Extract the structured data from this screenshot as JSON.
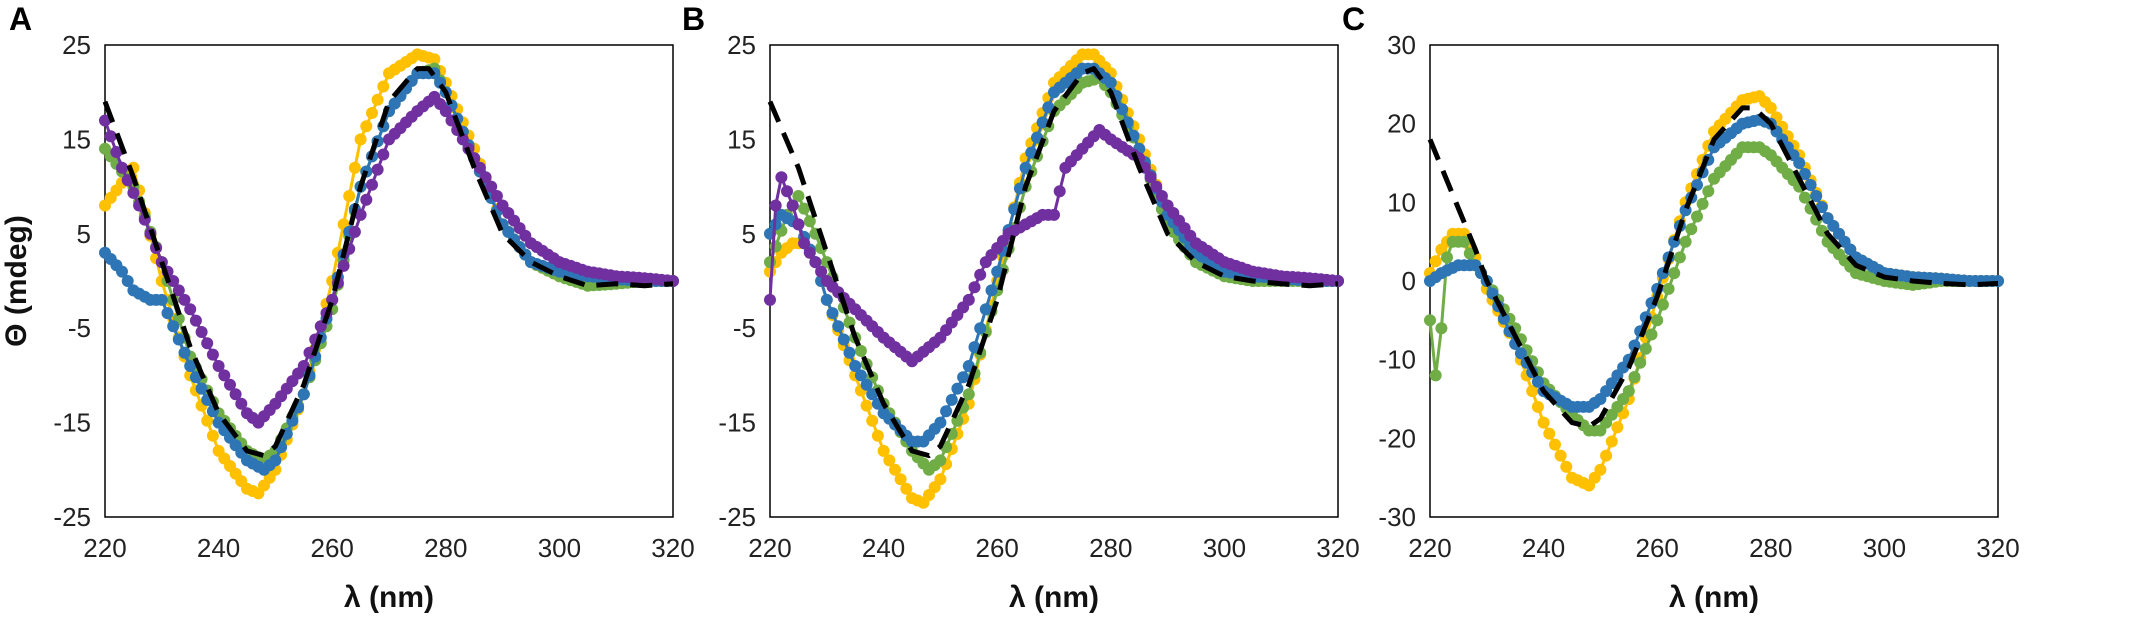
{
  "chart_data": [
    {
      "type": "line",
      "panel_label": "A",
      "xlabel": "λ (nm)",
      "ylabel": "Θ (mdeg)",
      "xlim": [
        220,
        320
      ],
      "ylim": [
        -25,
        25
      ],
      "xticks": [
        220,
        240,
        260,
        280,
        300,
        320
      ],
      "yticks": [
        25,
        15,
        5,
        -5,
        -15,
        -25
      ],
      "series": [
        {
          "name": "yellow",
          "color": "#FFC000",
          "style": "markers",
          "x": [
            220,
            225,
            230,
            235,
            240,
            245,
            247,
            250,
            255,
            260,
            265,
            270,
            275,
            278,
            280,
            285,
            290,
            295,
            300,
            305,
            310,
            315,
            320
          ],
          "y": [
            8,
            12,
            0,
            -10,
            -18,
            -22,
            -22.5,
            -20,
            -12,
            0,
            15,
            22,
            24,
            23.5,
            21,
            14,
            6,
            2,
            0.5,
            0,
            0,
            0,
            0
          ]
        },
        {
          "name": "green",
          "color": "#70AD47",
          "style": "markers",
          "x": [
            220,
            225,
            230,
            235,
            240,
            245,
            248,
            250,
            255,
            260,
            265,
            270,
            275,
            278,
            280,
            285,
            290,
            295,
            300,
            305,
            310,
            315,
            320
          ],
          "y": [
            14,
            10,
            2,
            -8,
            -14,
            -18,
            -19,
            -18,
            -12,
            -3,
            10,
            18,
            22,
            22.5,
            20,
            13,
            6,
            2,
            0.5,
            -0.5,
            -0.3,
            0,
            0
          ]
        },
        {
          "name": "blue",
          "color": "#2E75B6",
          "style": "markers",
          "x": [
            220,
            223,
            225,
            228,
            230,
            235,
            240,
            245,
            248,
            250,
            255,
            260,
            265,
            270,
            275,
            278,
            280,
            285,
            290,
            295,
            300,
            305,
            310,
            315,
            320
          ],
          "y": [
            3,
            1,
            -1,
            -2,
            -2,
            -9,
            -15,
            -19,
            -20,
            -19,
            -12,
            -2,
            10,
            18,
            22,
            22,
            20,
            13,
            6,
            2,
            1,
            0.5,
            0.2,
            0,
            0
          ]
        },
        {
          "name": "purple",
          "color": "#7030A0",
          "style": "markers",
          "x": [
            220,
            223,
            226,
            230,
            235,
            240,
            245,
            247,
            250,
            255,
            260,
            265,
            270,
            275,
            278,
            280,
            285,
            290,
            295,
            300,
            305,
            310,
            315,
            320
          ],
          "y": [
            17,
            12,
            8,
            2,
            -3,
            -9,
            -14,
            -15,
            -13,
            -9,
            -2,
            7,
            15,
            18,
            19.5,
            18,
            13,
            8,
            4,
            2,
            1,
            0.5,
            0.3,
            0
          ]
        },
        {
          "name": "reference",
          "color": "#000000",
          "style": "dashed",
          "x": [
            220,
            225,
            230,
            235,
            240,
            245,
            248,
            250,
            255,
            260,
            265,
            270,
            275,
            277,
            280,
            285,
            290,
            295,
            300,
            305,
            310,
            315,
            320
          ],
          "y": [
            19,
            11,
            2,
            -7,
            -14,
            -18,
            -18.5,
            -17.5,
            -11,
            -2,
            10,
            19,
            22.5,
            22.5,
            20,
            12,
            5,
            2,
            0.5,
            -0.5,
            -0.3,
            -0.5,
            -0.3
          ]
        }
      ]
    },
    {
      "type": "line",
      "panel_label": "B",
      "xlabel": "λ (nm)",
      "ylabel": "",
      "xlim": [
        220,
        320
      ],
      "ylim": [
        -25,
        25
      ],
      "xticks": [
        220,
        240,
        260,
        280,
        300,
        320
      ],
      "yticks": [
        25,
        15,
        5,
        -5,
        -15,
        -25
      ],
      "series": [
        {
          "name": "yellow",
          "color": "#FFC000",
          "style": "markers",
          "x": [
            220,
            222,
            224,
            226,
            228,
            230,
            235,
            240,
            245,
            247,
            250,
            255,
            260,
            265,
            270,
            275,
            277,
            280,
            285,
            290,
            295,
            300,
            305,
            310,
            315,
            320
          ],
          "y": [
            1,
            3,
            4,
            4,
            2,
            -2,
            -10,
            -18,
            -23,
            -23.5,
            -21,
            -13,
            0,
            13,
            21,
            24,
            24,
            22,
            15,
            7,
            3,
            1,
            0.5,
            0.3,
            0,
            0
          ]
        },
        {
          "name": "green",
          "color": "#70AD47",
          "style": "markers",
          "x": [
            220,
            223,
            225,
            228,
            230,
            235,
            240,
            245,
            248,
            250,
            255,
            260,
            265,
            270,
            275,
            278,
            280,
            285,
            290,
            295,
            300,
            305,
            310,
            315,
            320
          ],
          "y": [
            2,
            7,
            9,
            5,
            2,
            -6,
            -13,
            -18,
            -20,
            -19,
            -12,
            -1,
            10,
            18,
            21,
            21.5,
            20,
            14,
            6,
            2,
            0.5,
            0,
            0,
            0,
            0
          ]
        },
        {
          "name": "blue",
          "color": "#2E75B6",
          "style": "markers",
          "x": [
            220,
            222,
            225,
            228,
            230,
            235,
            240,
            245,
            247,
            250,
            255,
            260,
            265,
            270,
            275,
            277,
            280,
            285,
            290,
            295,
            300,
            305,
            310,
            315,
            320
          ],
          "y": [
            5,
            7,
            6,
            2,
            -2,
            -9,
            -14,
            -17,
            -17,
            -15,
            -9,
            1,
            12,
            20,
            22.5,
            22.5,
            21,
            14,
            7,
            3,
            1,
            0.5,
            0.3,
            0,
            0
          ]
        },
        {
          "name": "purple",
          "color": "#7030A0",
          "style": "markers",
          "x": [
            220,
            221,
            222,
            224,
            226,
            228,
            230,
            235,
            240,
            245,
            248,
            250,
            255,
            258,
            262,
            265,
            268,
            270,
            272,
            275,
            278,
            280,
            285,
            290,
            295,
            300,
            305,
            310,
            315,
            320
          ],
          "y": [
            -2,
            8,
            11,
            8,
            4,
            2,
            0,
            -3,
            -6,
            -8.5,
            -7,
            -6,
            -2,
            2,
            5,
            6,
            7,
            7,
            12,
            14,
            16,
            15,
            13,
            8,
            4,
            2,
            1,
            0.5,
            0.3,
            0
          ]
        },
        {
          "name": "reference",
          "color": "#000000",
          "style": "dashed",
          "x": [
            220,
            225,
            230,
            235,
            240,
            245,
            248,
            250,
            255,
            260,
            265,
            270,
            275,
            277,
            280,
            285,
            290,
            295,
            300,
            305,
            310,
            315,
            320
          ],
          "y": [
            19,
            12,
            3,
            -6,
            -13,
            -18,
            -18.5,
            -17.5,
            -11,
            -2,
            10,
            18,
            22,
            22.5,
            20,
            12,
            5,
            2,
            0.5,
            0,
            -0.3,
            -0.5,
            -0.3
          ]
        }
      ]
    },
    {
      "type": "line",
      "panel_label": "C",
      "xlabel": "λ (nm)",
      "ylabel": "",
      "xlim": [
        220,
        320
      ],
      "ylim": [
        -30,
        30
      ],
      "xticks": [
        220,
        240,
        260,
        280,
        300,
        320
      ],
      "yticks": [
        30,
        20,
        10,
        0,
        -10,
        -20,
        -30
      ],
      "series": [
        {
          "name": "yellow",
          "color": "#FFC000",
          "style": "markers",
          "x": [
            220,
            222,
            224,
            226,
            228,
            230,
            235,
            240,
            245,
            248,
            250,
            255,
            260,
            265,
            270,
            275,
            278,
            280,
            285,
            290,
            295,
            300,
            305,
            310,
            315,
            320
          ],
          "y": [
            1,
            4,
            6,
            6,
            3,
            -1,
            -8,
            -18,
            -25,
            -26,
            -24,
            -15,
            -2,
            10,
            19,
            23,
            23.5,
            22,
            16,
            8,
            3,
            1,
            0.5,
            0.3,
            0,
            0
          ]
        },
        {
          "name": "green",
          "color": "#70AD47",
          "style": "markers",
          "x": [
            220,
            221,
            222,
            223,
            224,
            226,
            228,
            230,
            235,
            240,
            245,
            248,
            250,
            255,
            260,
            265,
            270,
            275,
            278,
            280,
            285,
            290,
            295,
            300,
            305,
            310,
            315,
            320
          ],
          "y": [
            -5,
            -12,
            -6,
            3,
            5,
            5,
            2,
            0,
            -6,
            -13,
            -17,
            -19,
            -19,
            -14,
            -5,
            5,
            13,
            17,
            17,
            16,
            12,
            5,
            1,
            0,
            -0.5,
            0,
            0,
            0
          ]
        },
        {
          "name": "blue",
          "color": "#2E75B6",
          "style": "markers",
          "x": [
            220,
            222,
            225,
            228,
            230,
            235,
            240,
            245,
            248,
            250,
            255,
            260,
            265,
            270,
            275,
            278,
            280,
            285,
            290,
            295,
            300,
            305,
            310,
            315,
            320
          ],
          "y": [
            0,
            1,
            2,
            2,
            0,
            -8,
            -14,
            -16,
            -16,
            -15,
            -10,
            -1,
            9,
            17,
            20,
            20.5,
            20,
            15,
            8,
            3,
            1,
            0.5,
            0.3,
            0,
            0
          ]
        },
        {
          "name": "reference",
          "color": "#000000",
          "style": "dashed",
          "x": [
            220,
            224,
            228,
            230,
            235,
            240,
            245,
            248,
            250,
            255,
            260,
            265,
            270,
            275,
            277,
            280,
            285,
            290,
            295,
            300,
            305,
            310,
            315,
            320
          ],
          "y": [
            18,
            11,
            4,
            0,
            -7,
            -14,
            -18,
            -18.5,
            -17.5,
            -11,
            -2,
            9,
            18,
            22,
            22,
            20,
            13,
            6,
            2,
            0.5,
            0,
            -0.3,
            -0.5,
            -0.3
          ]
        }
      ]
    }
  ]
}
